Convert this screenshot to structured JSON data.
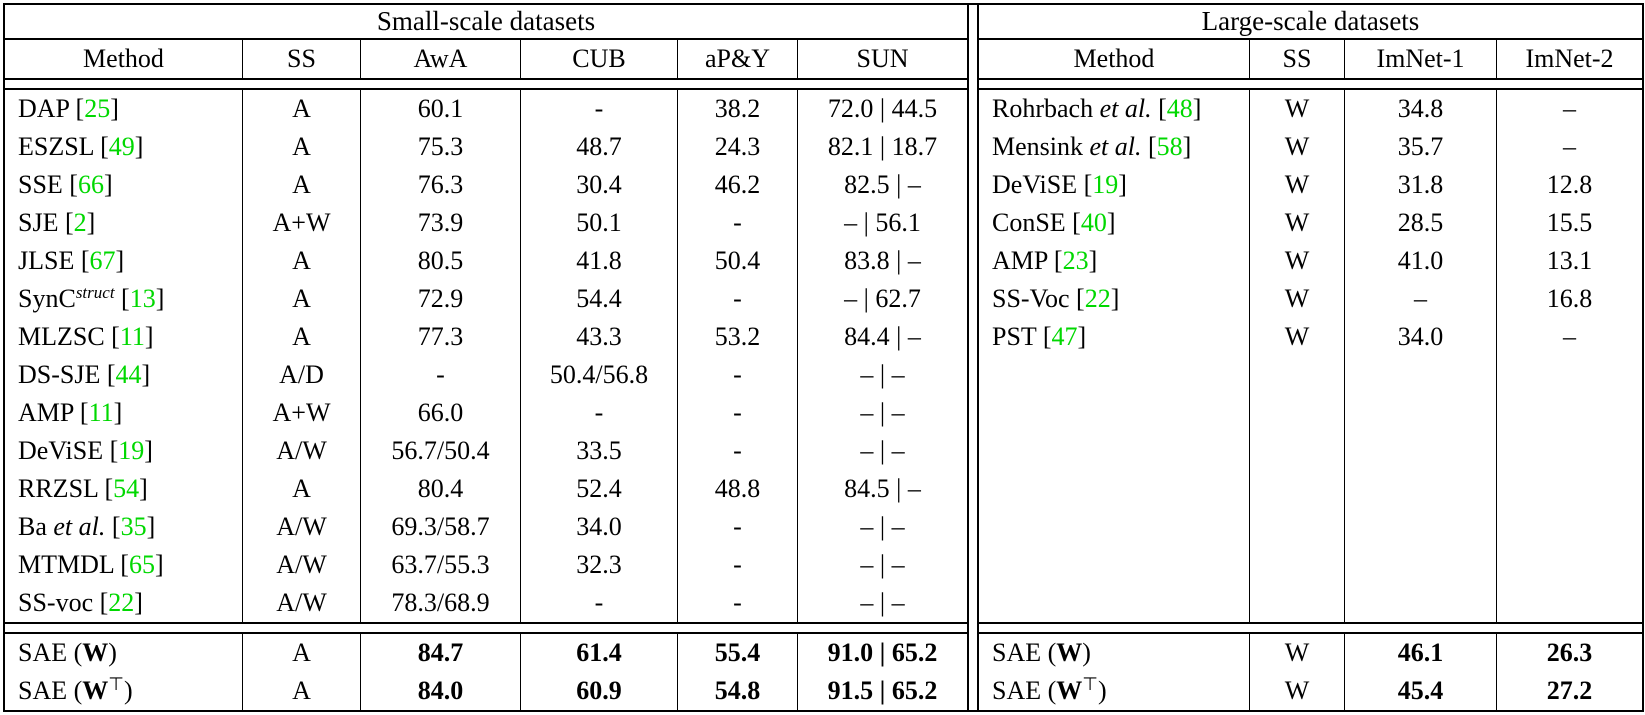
{
  "accent_cite_green": "#00d800",
  "left_table": {
    "title": "Small-scale datasets",
    "columns": [
      "Method",
      "SS",
      "AwA",
      "CUB",
      "aP&Y",
      "SUN"
    ],
    "rows": [
      {
        "method": [
          [
            "DAP [",
            "p"
          ],
          [
            "25",
            "c"
          ],
          [
            "]",
            "p"
          ]
        ],
        "cells": [
          "A",
          "60.1",
          "-",
          "38.2",
          "72.0 | 44.5"
        ]
      },
      {
        "method": [
          [
            "ESZSL [",
            "p"
          ],
          [
            "49",
            "c"
          ],
          [
            "]",
            "p"
          ]
        ],
        "cells": [
          "A",
          "75.3",
          "48.7",
          "24.3",
          "82.1 | 18.7"
        ]
      },
      {
        "method": [
          [
            "SSE [",
            "p"
          ],
          [
            "66",
            "c"
          ],
          [
            "]",
            "p"
          ]
        ],
        "cells": [
          "A",
          "76.3",
          "30.4",
          "46.2",
          "82.5 | –"
        ]
      },
      {
        "method": [
          [
            "SJE [",
            "p"
          ],
          [
            "2",
            "c"
          ],
          [
            "]",
            "p"
          ]
        ],
        "cells": [
          "A+W",
          "73.9",
          "50.1",
          "-",
          "– | 56.1"
        ]
      },
      {
        "method": [
          [
            "JLSE [",
            "p"
          ],
          [
            "67",
            "c"
          ],
          [
            "]",
            "p"
          ]
        ],
        "cells": [
          "A",
          "80.5",
          "41.8",
          "50.4",
          "83.8 | –"
        ]
      },
      {
        "method": [
          [
            "SynC",
            "p"
          ],
          [
            "struct",
            "sup"
          ],
          [
            " [",
            "p"
          ],
          [
            "13",
            "c"
          ],
          [
            "]",
            "p"
          ]
        ],
        "cells": [
          "A",
          "72.9",
          "54.4",
          "-",
          "– | 62.7"
        ]
      },
      {
        "method": [
          [
            "MLZSC [",
            "p"
          ],
          [
            "11",
            "c"
          ],
          [
            "]",
            "p"
          ]
        ],
        "cells": [
          "A",
          "77.3",
          "43.3",
          "53.2",
          "84.4 | –"
        ]
      },
      {
        "method": [
          [
            "DS-SJE [",
            "p"
          ],
          [
            "44",
            "c"
          ],
          [
            "]",
            "p"
          ]
        ],
        "cells": [
          "A/D",
          "-",
          "50.4/56.8",
          "-",
          "– | –"
        ]
      },
      {
        "method": [
          [
            "AMP [",
            "p"
          ],
          [
            "11",
            "c"
          ],
          [
            "]",
            "p"
          ]
        ],
        "cells": [
          "A+W",
          "66.0",
          "-",
          "-",
          "– | –"
        ]
      },
      {
        "method": [
          [
            "DeViSE [",
            "p"
          ],
          [
            "19",
            "c"
          ],
          [
            "]",
            "p"
          ]
        ],
        "cells": [
          "A/W",
          "56.7/50.4",
          "33.5",
          "-",
          "– | –"
        ]
      },
      {
        "method": [
          [
            "RRZSL [",
            "p"
          ],
          [
            "54",
            "c"
          ],
          [
            "]",
            "p"
          ]
        ],
        "cells": [
          "A",
          "80.4",
          "52.4",
          "48.8",
          "84.5 | –"
        ]
      },
      {
        "method": [
          [
            "Ba ",
            "p"
          ],
          [
            "et al.",
            "i"
          ],
          [
            " [",
            "p"
          ],
          [
            "35",
            "c"
          ],
          [
            "]",
            "p"
          ]
        ],
        "cells": [
          "A/W",
          "69.3/58.7",
          "34.0",
          "-",
          "– | –"
        ]
      },
      {
        "method": [
          [
            "MTMDL [",
            "p"
          ],
          [
            "65",
            "c"
          ],
          [
            "]",
            "p"
          ]
        ],
        "cells": [
          "A/W",
          "63.7/55.3",
          "32.3",
          "-",
          "– | –"
        ]
      },
      {
        "method": [
          [
            "SS-voc [",
            "p"
          ],
          [
            "22",
            "c"
          ],
          [
            "]",
            "p"
          ]
        ],
        "cells": [
          "A/W",
          "78.3/68.9",
          "-",
          "-",
          "– | –"
        ]
      }
    ],
    "footer_rows": [
      {
        "method": [
          [
            "SAE (",
            "p"
          ],
          [
            "W",
            "b"
          ],
          [
            ")",
            "p"
          ]
        ],
        "cells": [
          "A",
          "84.7",
          "61.4",
          "55.4",
          "91.0 | 65.2"
        ]
      },
      {
        "method": [
          [
            "SAE (",
            "p"
          ],
          [
            "W",
            "b"
          ],
          [
            "⊤",
            "t"
          ],
          [
            ")",
            "p"
          ]
        ],
        "cells": [
          "A",
          "84.0",
          "60.9",
          "54.8",
          "91.5 | 65.2"
        ]
      }
    ]
  },
  "right_table": {
    "title": "Large-scale datasets",
    "columns": [
      "Method",
      "SS",
      "ImNet-1",
      "ImNet-2"
    ],
    "rows": [
      {
        "method": [
          [
            "Rohrbach ",
            "p"
          ],
          [
            "et al.",
            "i"
          ],
          [
            " [",
            "p"
          ],
          [
            "48",
            "c"
          ],
          [
            "]",
            "p"
          ]
        ],
        "cells": [
          "W",
          "34.8",
          "–"
        ]
      },
      {
        "method": [
          [
            "Mensink ",
            "p"
          ],
          [
            "et al.",
            "i"
          ],
          [
            " [",
            "p"
          ],
          [
            "58",
            "c"
          ],
          [
            "]",
            "p"
          ]
        ],
        "cells": [
          "W",
          "35.7",
          "–"
        ]
      },
      {
        "method": [
          [
            "DeViSE [",
            "p"
          ],
          [
            "19",
            "c"
          ],
          [
            "]",
            "p"
          ]
        ],
        "cells": [
          "W",
          "31.8",
          "12.8"
        ]
      },
      {
        "method": [
          [
            "ConSE [",
            "p"
          ],
          [
            "40",
            "c"
          ],
          [
            "]",
            "p"
          ]
        ],
        "cells": [
          "W",
          "28.5",
          "15.5"
        ]
      },
      {
        "method": [
          [
            "AMP [",
            "p"
          ],
          [
            "23",
            "c"
          ],
          [
            "]",
            "p"
          ]
        ],
        "cells": [
          "W",
          "41.0",
          "13.1"
        ]
      },
      {
        "method": [
          [
            "SS-Voc [",
            "p"
          ],
          [
            "22",
            "c"
          ],
          [
            "]",
            "p"
          ]
        ],
        "cells": [
          "W",
          "–",
          "16.8"
        ]
      },
      {
        "method": [
          [
            "PST [",
            "p"
          ],
          [
            "47",
            "c"
          ],
          [
            "]",
            "p"
          ]
        ],
        "cells": [
          "W",
          "34.0",
          "–"
        ]
      }
    ],
    "footer_rows": [
      {
        "method": [
          [
            "SAE (",
            "p"
          ],
          [
            "W",
            "b"
          ],
          [
            ")",
            "p"
          ]
        ],
        "cells": [
          "W",
          "46.1",
          "26.3"
        ]
      },
      {
        "method": [
          [
            "SAE (",
            "p"
          ],
          [
            "W",
            "b"
          ],
          [
            "⊤",
            "t"
          ],
          [
            ")",
            "p"
          ]
        ],
        "cells": [
          "W",
          "45.4",
          "27.2"
        ]
      }
    ]
  }
}
